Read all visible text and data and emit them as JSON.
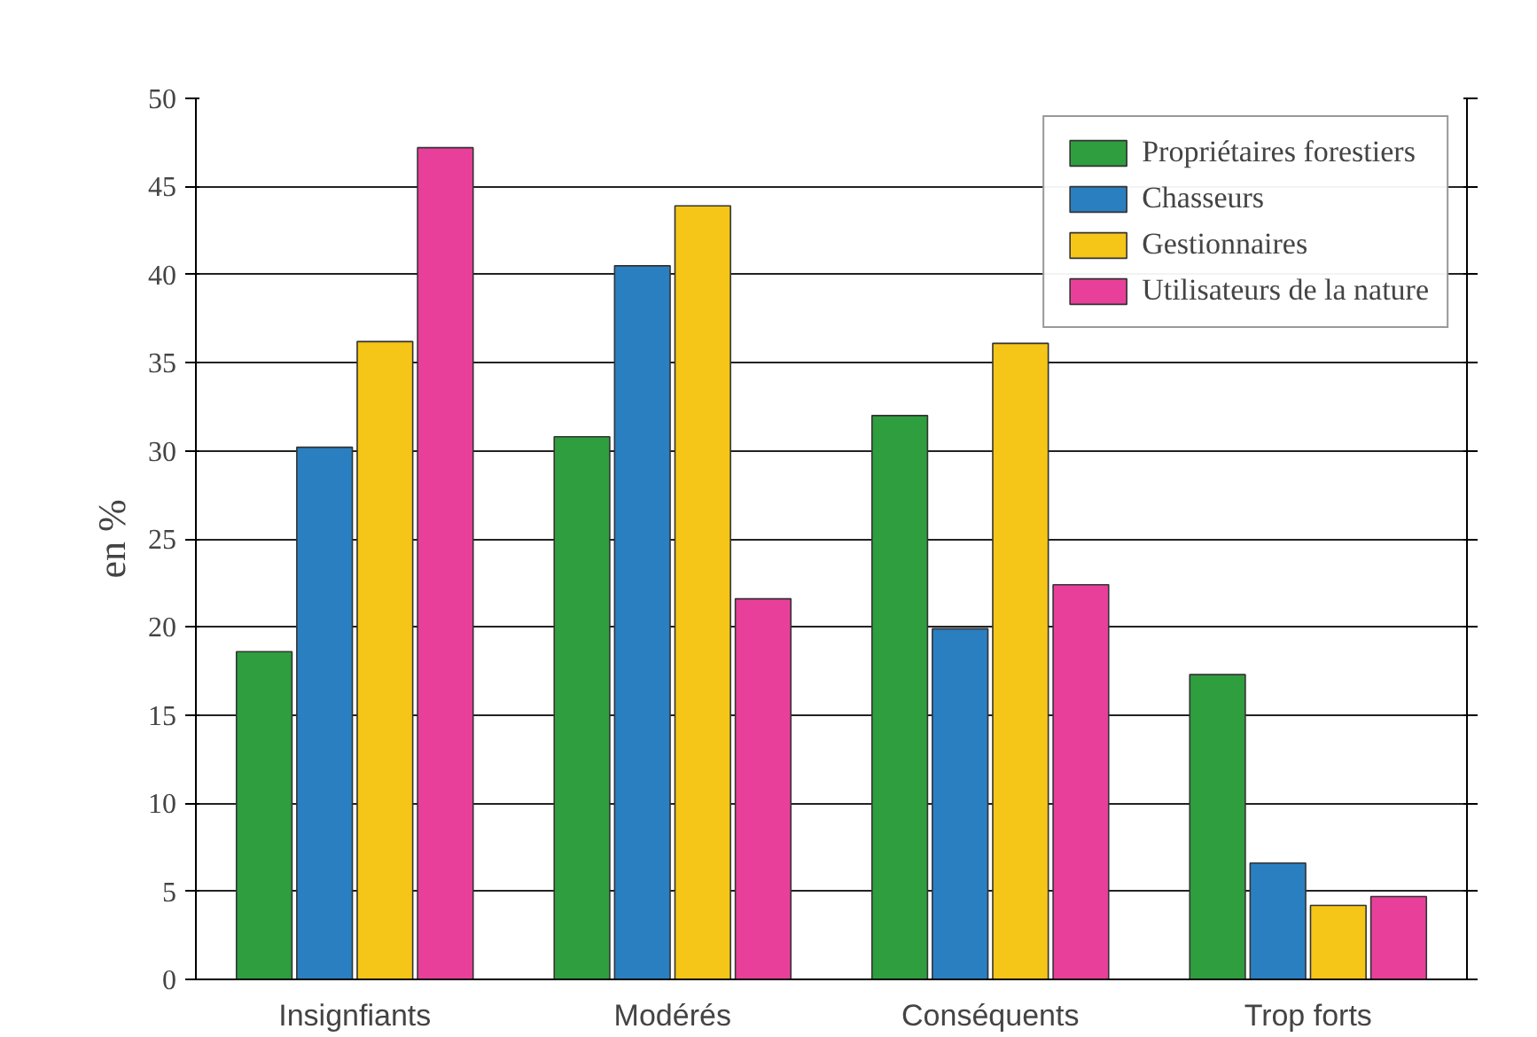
{
  "chart_data": {
    "type": "bar",
    "ylabel": "en %",
    "categories": [
      "Insignfiants",
      "Modérés",
      "Conséquents",
      "Trop forts"
    ],
    "series": [
      {
        "name": "Propriétaires forestiers",
        "color": "#2e9e3e",
        "values": [
          18.6,
          30.8,
          32.0,
          17.3
        ]
      },
      {
        "name": "Chasseurs",
        "color": "#2a7fc0",
        "values": [
          30.2,
          40.5,
          19.9,
          6.6
        ]
      },
      {
        "name": "Gestionnaires",
        "color": "#f5c518",
        "values": [
          36.2,
          43.9,
          36.1,
          4.2
        ]
      },
      {
        "name": "Utilisateurs de la nature",
        "color": "#e8409a",
        "values": [
          47.2,
          21.6,
          22.4,
          4.7
        ]
      }
    ],
    "ylim": [
      0,
      50
    ],
    "yticks": [
      0,
      5,
      10,
      15,
      20,
      25,
      30,
      35,
      40,
      45,
      50
    ],
    "grid": "y",
    "legend": "top right"
  }
}
